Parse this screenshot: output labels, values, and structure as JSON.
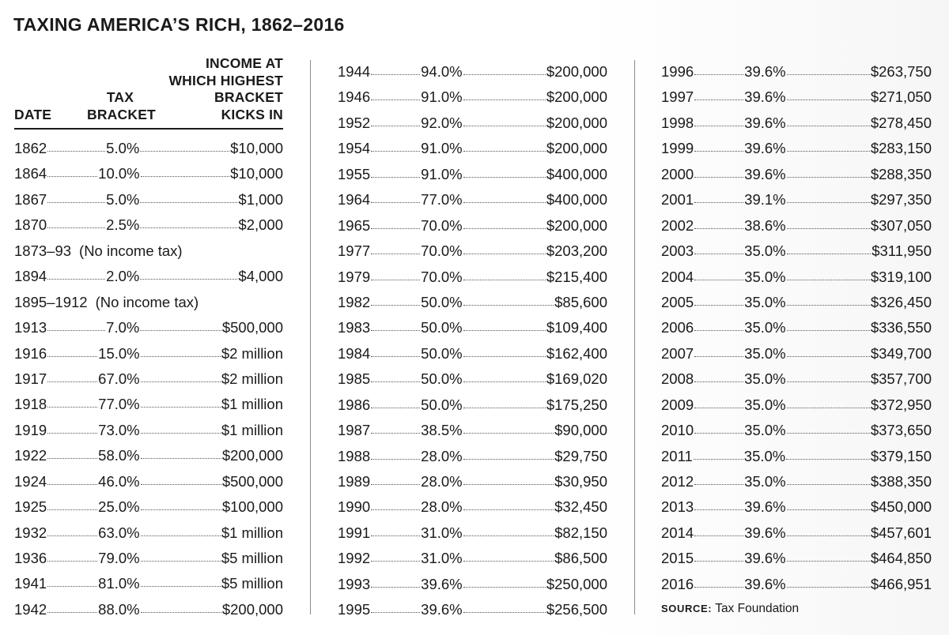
{
  "title": "TAXING AMERICA’S RICH, 1862–2016",
  "headers": {
    "date": "DATE",
    "tax_bracket": "TAX\nBRACKET",
    "income": "INCOME AT\nWHICH HIGHEST\nBRACKET\nKICKS IN"
  },
  "columns": [
    [
      {
        "date": "1862",
        "rate": "5.0%",
        "income": "$10,000"
      },
      {
        "date": "1864",
        "rate": "10.0%",
        "income": "$10,000"
      },
      {
        "date": "1867",
        "rate": "5.0%",
        "income": "$1,000"
      },
      {
        "date": "1870",
        "rate": "2.5%",
        "income": "$2,000"
      },
      {
        "date": "1873–93",
        "note": "(No income tax)"
      },
      {
        "date": "1894",
        "rate": "2.0%",
        "income": "$4,000"
      },
      {
        "date": "1895–1912",
        "note": "(No income tax)"
      },
      {
        "date": "1913",
        "rate": "7.0%",
        "income": "$500,000"
      },
      {
        "date": "1916",
        "rate": "15.0%",
        "income": "$2 million"
      },
      {
        "date": "1917",
        "rate": "67.0%",
        "income": "$2 million"
      },
      {
        "date": "1918",
        "rate": "77.0%",
        "income": "$1 million"
      },
      {
        "date": "1919",
        "rate": "73.0%",
        "income": "$1 million"
      },
      {
        "date": "1922",
        "rate": "58.0%",
        "income": "$200,000"
      },
      {
        "date": "1924",
        "rate": "46.0%",
        "income": "$500,000"
      },
      {
        "date": "1925",
        "rate": "25.0%",
        "income": "$100,000"
      },
      {
        "date": "1932",
        "rate": "63.0%",
        "income": "$1 million"
      },
      {
        "date": "1936",
        "rate": "79.0%",
        "income": "$5 million"
      },
      {
        "date": "1941",
        "rate": "81.0%",
        "income": "$5 million"
      },
      {
        "date": "1942",
        "rate": "88.0%",
        "income": "$200,000"
      }
    ],
    [
      {
        "date": "1944",
        "rate": "94.0%",
        "income": "$200,000"
      },
      {
        "date": "1946",
        "rate": "91.0%",
        "income": "$200,000"
      },
      {
        "date": "1952",
        "rate": "92.0%",
        "income": "$200,000"
      },
      {
        "date": "1954",
        "rate": "91.0%",
        "income": "$200,000"
      },
      {
        "date": "1955",
        "rate": "91.0%",
        "income": "$400,000"
      },
      {
        "date": "1964",
        "rate": "77.0%",
        "income": "$400,000"
      },
      {
        "date": "1965",
        "rate": "70.0%",
        "income": "$200,000"
      },
      {
        "date": "1977",
        "rate": "70.0%",
        "income": "$203,200"
      },
      {
        "date": "1979",
        "rate": "70.0%",
        "income": "$215,400"
      },
      {
        "date": "1982",
        "rate": "50.0%",
        "income": "$85,600"
      },
      {
        "date": "1983",
        "rate": "50.0%",
        "income": "$109,400"
      },
      {
        "date": "1984",
        "rate": "50.0%",
        "income": "$162,400"
      },
      {
        "date": "1985",
        "rate": "50.0%",
        "income": "$169,020"
      },
      {
        "date": "1986",
        "rate": "50.0%",
        "income": "$175,250"
      },
      {
        "date": "1987",
        "rate": "38.5%",
        "income": "$90,000"
      },
      {
        "date": "1988",
        "rate": "28.0%",
        "income": "$29,750"
      },
      {
        "date": "1989",
        "rate": "28.0%",
        "income": "$30,950"
      },
      {
        "date": "1990",
        "rate": "28.0%",
        "income": "$32,450"
      },
      {
        "date": "1991",
        "rate": "31.0%",
        "income": "$82,150"
      },
      {
        "date": "1992",
        "rate": "31.0%",
        "income": "$86,500"
      },
      {
        "date": "1993",
        "rate": "39.6%",
        "income": "$250,000"
      },
      {
        "date": "1995",
        "rate": "39.6%",
        "income": "$256,500"
      }
    ],
    [
      {
        "date": "1996",
        "rate": "39.6%",
        "income": "$263,750"
      },
      {
        "date": "1997",
        "rate": "39.6%",
        "income": "$271,050"
      },
      {
        "date": "1998",
        "rate": "39.6%",
        "income": "$278,450"
      },
      {
        "date": "1999",
        "rate": "39.6%",
        "income": "$283,150"
      },
      {
        "date": "2000",
        "rate": "39.6%",
        "income": "$288,350"
      },
      {
        "date": "2001",
        "rate": "39.1%",
        "income": "$297,350"
      },
      {
        "date": "2002",
        "rate": "38.6%",
        "income": "$307,050"
      },
      {
        "date": "2003",
        "rate": "35.0%",
        "income": "$311,950"
      },
      {
        "date": "2004",
        "rate": "35.0%",
        "income": "$319,100"
      },
      {
        "date": "2005",
        "rate": "35.0%",
        "income": "$326,450"
      },
      {
        "date": "2006",
        "rate": "35.0%",
        "income": "$336,550"
      },
      {
        "date": "2007",
        "rate": "35.0%",
        "income": "$349,700"
      },
      {
        "date": "2008",
        "rate": "35.0%",
        "income": "$357,700"
      },
      {
        "date": "2009",
        "rate": "35.0%",
        "income": "$372,950"
      },
      {
        "date": "2010",
        "rate": "35.0%",
        "income": "$373,650"
      },
      {
        "date": "2011",
        "rate": "35.0%",
        "income": "$379,150"
      },
      {
        "date": "2012",
        "rate": "35.0%",
        "income": "$388,350"
      },
      {
        "date": "2013",
        "rate": "39.6%",
        "income": "$450,000"
      },
      {
        "date": "2014",
        "rate": "39.6%",
        "income": "$457,601"
      },
      {
        "date": "2015",
        "rate": "39.6%",
        "income": "$464,850"
      },
      {
        "date": "2016",
        "rate": "39.6%",
        "income": "$466,951"
      }
    ]
  ],
  "source": {
    "label": "SOURCE:",
    "text": "Tax Foundation"
  }
}
